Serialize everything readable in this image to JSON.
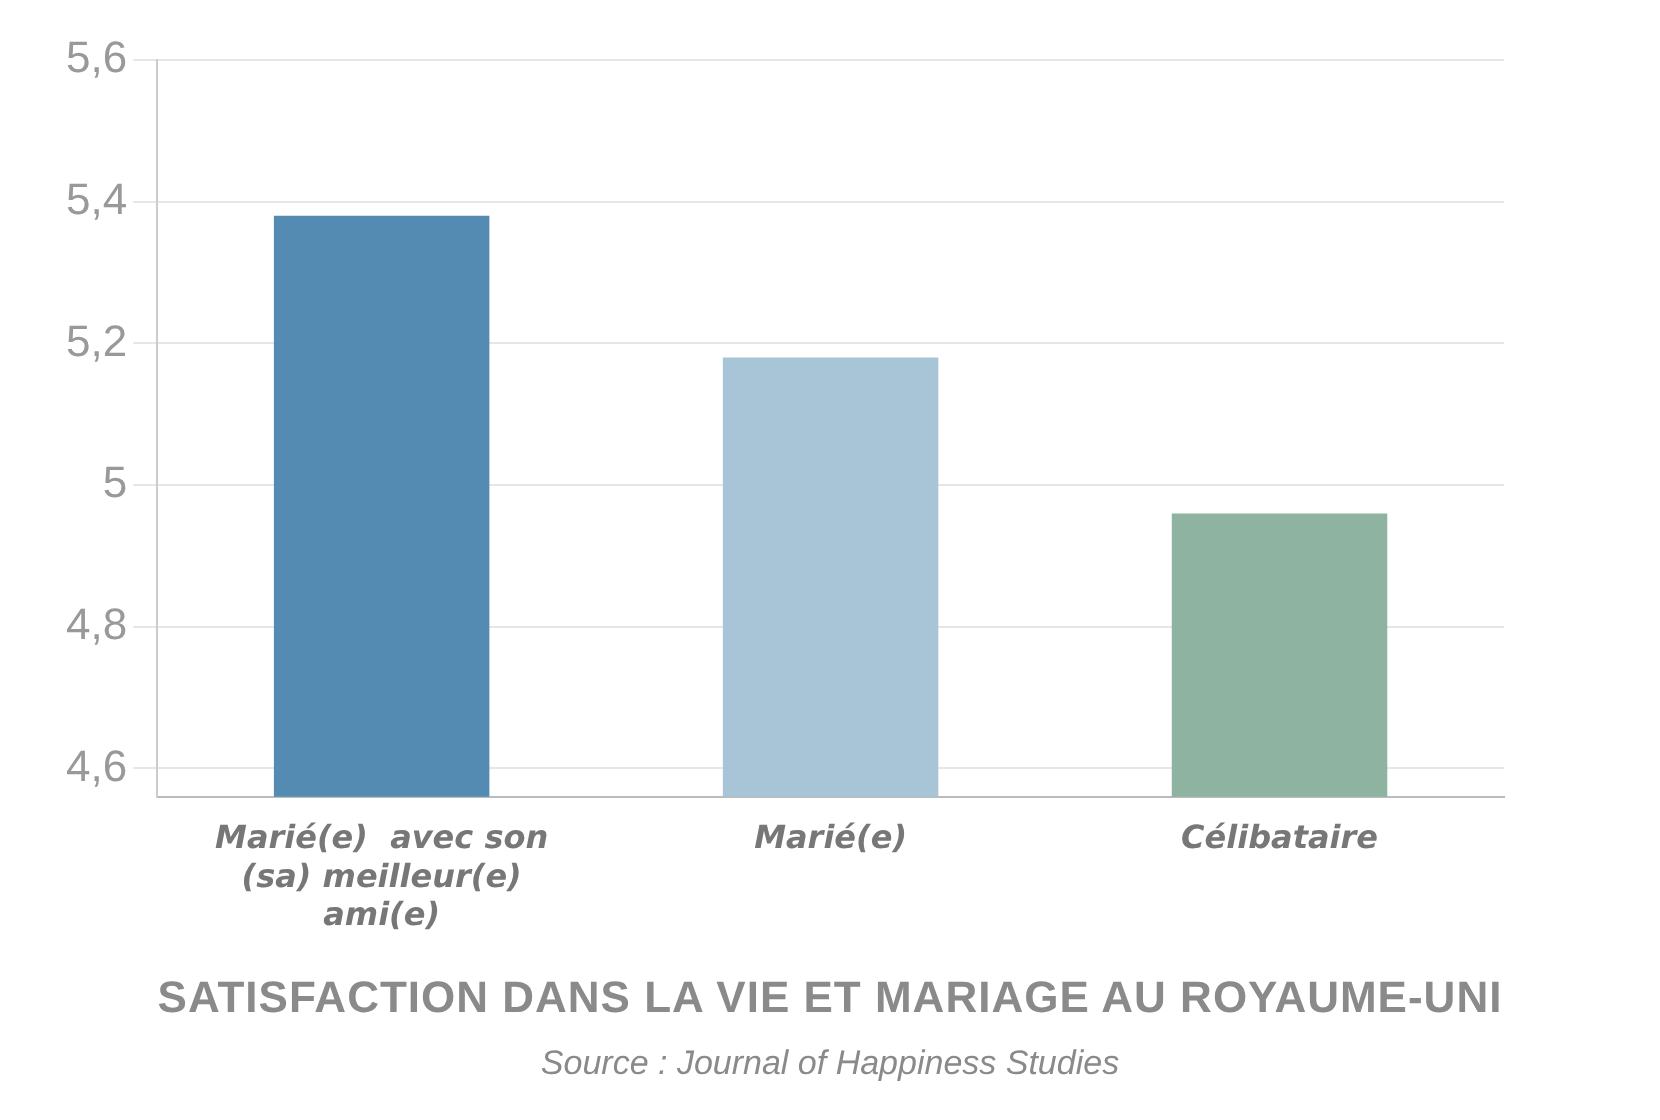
{
  "chart_data": {
    "type": "bar",
    "title": "SATISFACTION DANS LA VIE ET MARIAGE AU ROYAUME-UNI",
    "annotations": [
      "Source : Journal of Happiness Studies"
    ],
    "categories": [
      "Marié(e)  avec son (sa) meilleur(e) ami(e)",
      "Marié(e)",
      "Célibataire"
    ],
    "values": [
      5.38,
      5.18,
      4.96
    ],
    "colors": [
      "#548bb2",
      "#a8c4d7",
      "#8eb3a0"
    ],
    "ylim": [
      4.56,
      5.6
    ],
    "yticks": [
      {
        "value": 4.6,
        "label": "4,6"
      },
      {
        "value": 4.8,
        "label": "4,8"
      },
      {
        "value": 5,
        "label": "5"
      },
      {
        "value": 5.2,
        "label": "5,2"
      },
      {
        "value": 5.4,
        "label": "5,4"
      },
      {
        "value": 5.6,
        "label": "5,6"
      }
    ],
    "grid": "y",
    "legend": false
  }
}
